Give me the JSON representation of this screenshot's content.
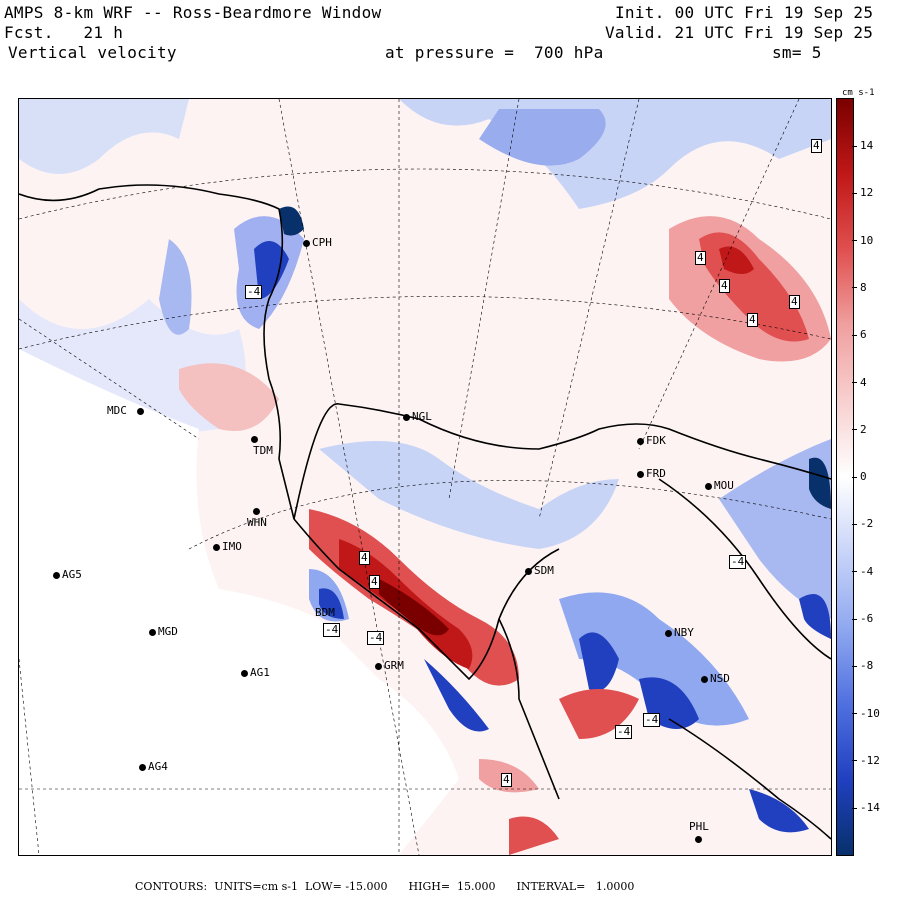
{
  "header": {
    "title": "AMPS 8-km WRF -- Ross-Beardmore Window",
    "forecast": "Fcst.   21 h",
    "variable": "Vertical velocity",
    "init": "Init. 00 UTC Fri 19 Sep 25",
    "valid": "Valid. 21 UTC Fri 19 Sep 25",
    "pressure_level": "at pressure =  700 hPa",
    "smoothing": "sm= 5"
  },
  "stations": [
    {
      "id": "CPH",
      "label": "CPH"
    },
    {
      "id": "MDC",
      "label": "MDC"
    },
    {
      "id": "TDM",
      "label": "TDM"
    },
    {
      "id": "NGL",
      "label": "NGL"
    },
    {
      "id": "WHN",
      "label": "WHN"
    },
    {
      "id": "IMO",
      "label": "IMO"
    },
    {
      "id": "AG5",
      "label": "AG5"
    },
    {
      "id": "MGD",
      "label": "MGD"
    },
    {
      "id": "AG1",
      "label": "AG1"
    },
    {
      "id": "AG4",
      "label": "AG4"
    },
    {
      "id": "BDM",
      "label": "BDM"
    },
    {
      "id": "GRM",
      "label": "GRM"
    },
    {
      "id": "SDM",
      "label": "SDM"
    },
    {
      "id": "FRD",
      "label": "FRD"
    },
    {
      "id": "FDK",
      "label": "FDK"
    },
    {
      "id": "MOU",
      "label": "MOU"
    },
    {
      "id": "NBY",
      "label": "NBY"
    },
    {
      "id": "NSD",
      "label": "NSD"
    },
    {
      "id": "PHL",
      "label": "PHL"
    }
  ],
  "contour_labels": [
    "4",
    "4",
    "4",
    "4",
    "4",
    "4",
    "4",
    "4",
    "-4",
    "-4",
    "-4",
    "-4",
    "-4",
    "-4"
  ],
  "colorbar": {
    "units": "cm s-1",
    "ticks": [
      "14",
      "12",
      "10",
      "8",
      "6",
      "4",
      "2",
      "0",
      "-2",
      "-4",
      "-6",
      "-8",
      "-10",
      "-12",
      "-14"
    ],
    "colors": [
      "#08306b",
      "#2040c0",
      "#5070e0",
      "#90a8f0",
      "#c8d4f8",
      "#ffffff",
      "#f8d0d0",
      "#f0a0a0",
      "#e05050",
      "#c01818",
      "#7a0000"
    ]
  },
  "footer": {
    "text": "CONTOURS:  UNITS=cm s-1  LOW= -15.000      HIGH=  15.000      INTERVAL=   1.0000"
  }
}
